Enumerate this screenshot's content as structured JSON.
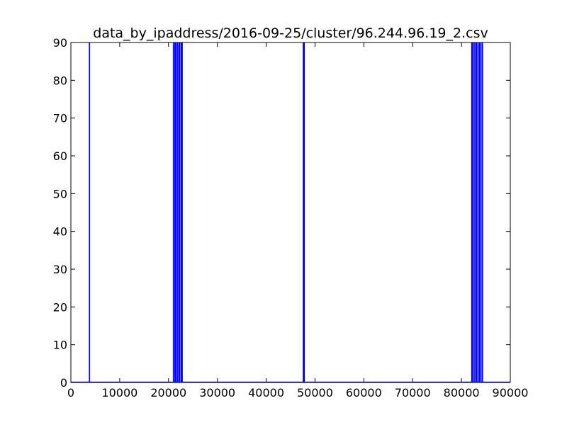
{
  "chart_data": {
    "type": "line",
    "title": "data_by_ipaddress/2016-09-25/cluster/96.244.96.19_2.csv",
    "xlabel": "",
    "ylabel": "",
    "xlim": [
      0,
      90000
    ],
    "ylim": [
      0,
      90
    ],
    "grid": false,
    "line_color": "#0000ff",
    "x_ticks": [
      0,
      10000,
      20000,
      30000,
      40000,
      50000,
      60000,
      70000,
      80000,
      90000
    ],
    "x_tick_labels": [
      "0",
      "10000",
      "20000",
      "30000",
      "40000",
      "50000",
      "60000",
      "70000",
      "80000",
      "90000"
    ],
    "y_ticks": [
      0,
      10,
      20,
      30,
      40,
      50,
      60,
      70,
      80,
      90
    ],
    "y_tick_labels": [
      "0",
      "10",
      "20",
      "30",
      "40",
      "50",
      "60",
      "70",
      "80",
      "90"
    ],
    "series": [
      {
        "spikes_x": [
          3800,
          21000,
          21300,
          21500,
          21800,
          22100,
          22300,
          22600,
          22800,
          47600,
          47800,
          82100,
          82300,
          82600,
          82900,
          83100,
          83400,
          83700,
          84000,
          84300
        ],
        "spike_value": 90,
        "baseline": 0
      }
    ]
  }
}
